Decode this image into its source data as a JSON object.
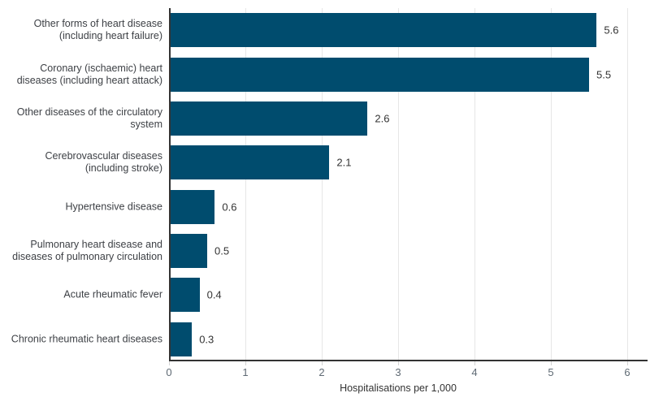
{
  "chart_data": {
    "type": "bar",
    "orientation": "horizontal",
    "title": "",
    "xlabel": "Hospitalisations per 1,000",
    "ylabel": "",
    "categories": [
      "Other forms of heart disease (including heart failure)",
      "Coronary (ischaemic) heart diseases (including heart attack)",
      "Other diseases of the circulatory system",
      "Cerebrovascular diseases (including stroke)",
      "Hypertensive disease",
      "Pulmonary heart disease and diseases of pulmonary circulation",
      "Acute rheumatic fever",
      "Chronic rheumatic heart diseases"
    ],
    "category_lines": [
      [
        "Other forms of heart disease",
        "(including heart failure)"
      ],
      [
        "Coronary (ischaemic) heart",
        "diseases (including heart attack)"
      ],
      [
        "Other diseases of the circulatory",
        "system"
      ],
      [
        "Cerebrovascular diseases",
        "(including stroke)"
      ],
      [
        "Hypertensive disease"
      ],
      [
        "Pulmonary heart disease and",
        "diseases of pulmonary circulation"
      ],
      [
        "Acute rheumatic fever"
      ],
      [
        "Chronic rheumatic heart diseases"
      ]
    ],
    "values": [
      5.6,
      5.5,
      2.6,
      2.1,
      0.6,
      0.5,
      0.4,
      0.3
    ],
    "value_labels": [
      "5.6",
      "5.5",
      "2.6",
      "2.1",
      "0.6",
      "0.5",
      "0.4",
      "0.3"
    ],
    "xlim": [
      0,
      6
    ],
    "xticks": [
      0,
      1,
      2,
      3,
      4,
      5,
      6
    ],
    "xtick_labels": [
      "0",
      "1",
      "2",
      "3",
      "4",
      "5",
      "6"
    ],
    "grid": "vertical",
    "legend": "none",
    "colors": {
      "bar": "#004C6E",
      "gridline": "#E6E6E6",
      "axis_line": "#333333",
      "tick_mark": "#D3D3D3",
      "category_label": "#3D4045",
      "value_label": "#333333",
      "tick_label": "#5F6A74",
      "axis_title": "#333333",
      "background": "#FFFFFF"
    }
  }
}
